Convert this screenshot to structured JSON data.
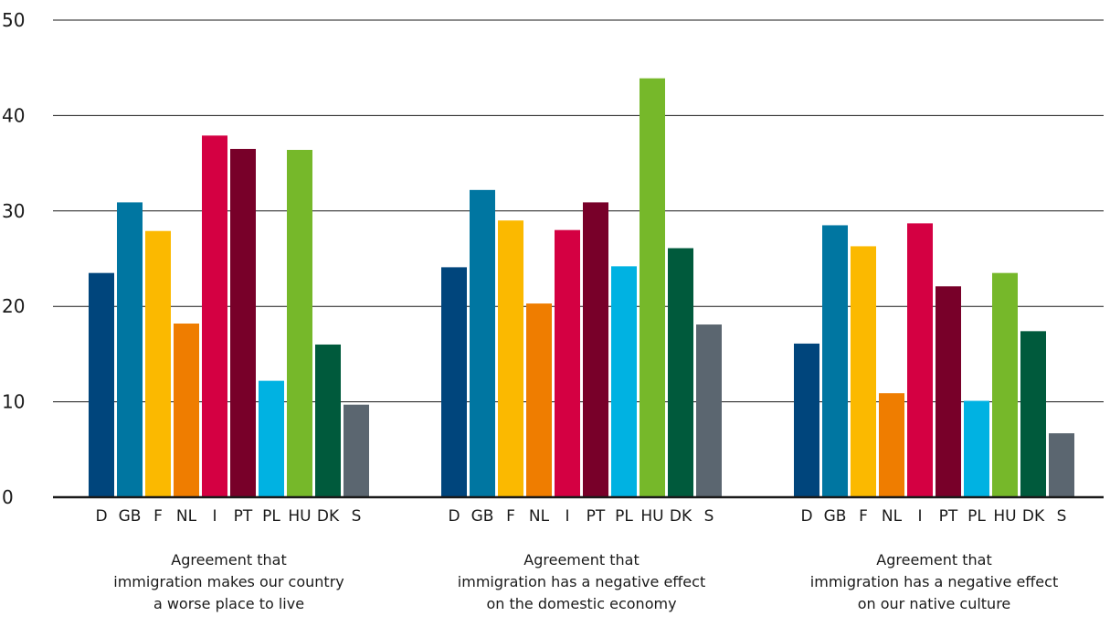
{
  "chart_data": {
    "type": "bar",
    "ylim": [
      0,
      50
    ],
    "yticks": [
      "0",
      "10",
      "20",
      "30",
      "40",
      "50"
    ],
    "grid": true,
    "countries": [
      "D",
      "GB",
      "F",
      "NL",
      "I",
      "PT",
      "PL",
      "HU",
      "DK",
      "S"
    ],
    "colors": [
      "#00457c",
      "#0076a1",
      "#fbb900",
      "#ef7d00",
      "#d40042",
      "#780029",
      "#00b2e2",
      "#76b82a",
      "#005a3c",
      "#5b6670"
    ],
    "groups": [
      {
        "label": [
          "Agreement that",
          "immigration makes our country",
          "a worse place to live"
        ],
        "values": [
          23.5,
          30.9,
          27.9,
          18.2,
          37.9,
          36.5,
          12.2,
          36.4,
          16.0,
          9.7
        ]
      },
      {
        "label": [
          "Agreement that",
          "immigration has a negative effect",
          "on the domestic economy"
        ],
        "values": [
          24.1,
          32.2,
          29.0,
          20.3,
          28.0,
          30.9,
          24.2,
          43.9,
          26.1,
          18.1
        ]
      },
      {
        "label": [
          "Agreement that",
          "immigration has a negative effect",
          "on our native culture"
        ],
        "values": [
          16.1,
          28.5,
          26.3,
          10.9,
          28.7,
          22.1,
          10.1,
          23.5,
          17.4,
          6.7
        ]
      }
    ]
  }
}
